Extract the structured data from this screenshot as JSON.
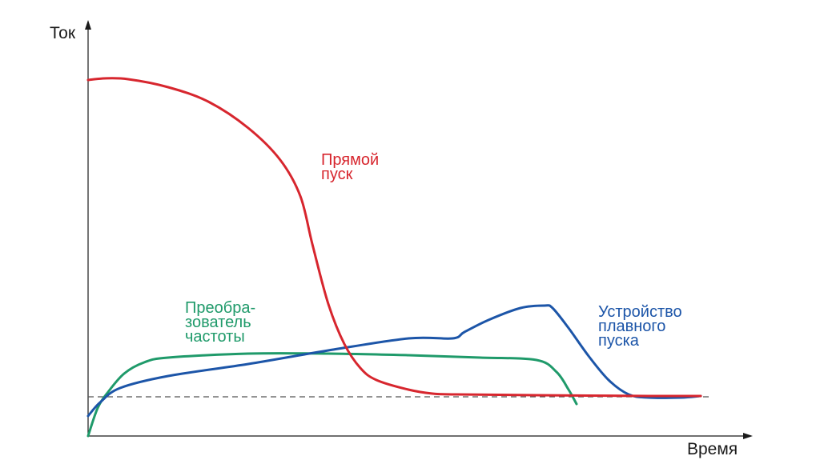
{
  "chart_data": {
    "type": "line",
    "xlabel": "Время",
    "ylabel": "Ток",
    "grid": false,
    "ticks": "none",
    "reference_line": {
      "style": "dashed",
      "color": "#555555"
    },
    "series": [
      {
        "name": "Прямой пуск",
        "label_lines": [
          "Прямой",
          "пуск"
        ],
        "color": "#d7262e",
        "points": [
          [
            0,
            445
          ],
          [
            20,
            447
          ],
          [
            50,
            446
          ],
          [
            100,
            436
          ],
          [
            150,
            418
          ],
          [
            200,
            385
          ],
          [
            240,
            345
          ],
          [
            265,
            300
          ],
          [
            280,
            240
          ],
          [
            300,
            165
          ],
          [
            320,
            115
          ],
          [
            340,
            85
          ],
          [
            360,
            70
          ],
          [
            400,
            58
          ],
          [
            430,
            53
          ],
          [
            460,
            52
          ],
          [
            560,
            51
          ],
          [
            700,
            50
          ],
          [
            765,
            50
          ]
        ]
      },
      {
        "name": "Преобразователь частоты",
        "label_lines": [
          "Преобра-",
          "зователь",
          "частоты"
        ],
        "color": "#1f9a6a",
        "points": [
          [
            0,
            0
          ],
          [
            12,
            35
          ],
          [
            25,
            55
          ],
          [
            45,
            78
          ],
          [
            70,
            92
          ],
          [
            100,
            98
          ],
          [
            200,
            103
          ],
          [
            300,
            103
          ],
          [
            400,
            101
          ],
          [
            490,
            98
          ],
          [
            560,
            95
          ],
          [
            585,
            80
          ],
          [
            600,
            58
          ],
          [
            610,
            40
          ]
        ]
      },
      {
        "name": "Устройство плавного пуска",
        "label_lines": [
          "Устройство",
          "плавного",
          "пуска"
        ],
        "color": "#1c55a8",
        "points": [
          [
            0,
            25
          ],
          [
            15,
            42
          ],
          [
            40,
            60
          ],
          [
            100,
            75
          ],
          [
            200,
            90
          ],
          [
            300,
            107
          ],
          [
            400,
            122
          ],
          [
            455,
            122
          ],
          [
            470,
            130
          ],
          [
            500,
            145
          ],
          [
            540,
            160
          ],
          [
            570,
            163
          ],
          [
            580,
            160
          ],
          [
            600,
            135
          ],
          [
            625,
            100
          ],
          [
            650,
            70
          ],
          [
            675,
            52
          ],
          [
            700,
            48
          ],
          [
            740,
            48
          ],
          [
            765,
            50
          ]
        ]
      }
    ]
  }
}
